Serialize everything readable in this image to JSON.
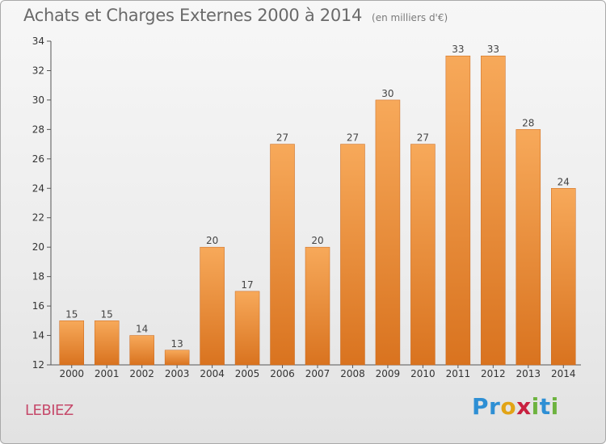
{
  "header": {
    "title": "Achats et Charges Externes 2000 à 2014",
    "unit": "(en milliers d'€)"
  },
  "footer": {
    "commune": "LEBIEZ",
    "brand_letters": [
      {
        "ch": "P",
        "color": "#2e8fd4"
      },
      {
        "ch": "r",
        "color": "#2e8fd4"
      },
      {
        "ch": "o",
        "color": "#e2a416"
      },
      {
        "ch": "x",
        "color": "#c8203f"
      },
      {
        "ch": "i",
        "color": "#6db33f"
      },
      {
        "ch": "t",
        "color": "#2e8fd4"
      },
      {
        "ch": "i",
        "color": "#6db33f"
      }
    ]
  },
  "chart_data": {
    "type": "bar",
    "title": "Achats et Charges Externes 2000 à 2014",
    "subtitle": "(en milliers d'€)",
    "xlabel": "",
    "ylabel": "",
    "categories": [
      "2000",
      "2001",
      "2002",
      "2003",
      "2004",
      "2005",
      "2006",
      "2007",
      "2008",
      "2009",
      "2010",
      "2011",
      "2012",
      "2013",
      "2014"
    ],
    "values": [
      15,
      15,
      14,
      13,
      20,
      17,
      27,
      20,
      27,
      30,
      27,
      33,
      33,
      28,
      24
    ],
    "ylim": [
      12,
      34
    ],
    "yticks": [
      12,
      14,
      16,
      18,
      20,
      22,
      24,
      26,
      28,
      30,
      32,
      34
    ],
    "grid": false,
    "legend": "none",
    "bar_color_top": "#f7a95a",
    "bar_color_bottom": "#d9731f"
  }
}
